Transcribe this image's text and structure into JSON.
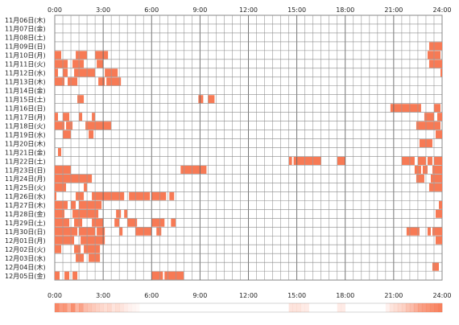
{
  "chart_data": {
    "type": "heatmap",
    "title": "",
    "xlabel": "",
    "ylabel": "",
    "x_ticks": [
      "0:00",
      "3:00",
      "6:00",
      "9:00",
      "12:00",
      "15:00",
      "18:00",
      "21:00",
      "24:00"
    ],
    "x_range_hours": [
      0,
      24
    ],
    "grid": true,
    "bar_color": "#f77a55",
    "rows": [
      {
        "label": "11月06日(木)",
        "segments": []
      },
      {
        "label": "11月07日(金)",
        "segments": []
      },
      {
        "label": "11月08日(土)",
        "segments": []
      },
      {
        "label": "11月09日(日)",
        "segments": [
          [
            23.2,
            24.0
          ]
        ]
      },
      {
        "label": "11月10日(月)",
        "segments": [
          [
            0.0,
            0.4
          ],
          [
            1.3,
            2.0
          ],
          [
            2.5,
            3.3
          ],
          [
            23.1,
            23.9
          ]
        ]
      },
      {
        "label": "11月11日(火)",
        "segments": [
          [
            0.0,
            0.8
          ],
          [
            1.1,
            1.8
          ],
          [
            2.6,
            3.0
          ],
          [
            23.2,
            24.0
          ]
        ]
      },
      {
        "label": "11月12日(水)",
        "segments": [
          [
            0.0,
            0.2
          ],
          [
            0.5,
            0.8
          ],
          [
            1.2,
            2.5
          ],
          [
            3.1,
            3.9
          ],
          [
            23.9,
            24.0
          ]
        ]
      },
      {
        "label": "11月13日(木)",
        "segments": [
          [
            0.0,
            0.6
          ],
          [
            0.8,
            1.4
          ],
          [
            2.7,
            3.1
          ],
          [
            3.2,
            4.1
          ]
        ]
      },
      {
        "label": "11月14日(金)",
        "segments": []
      },
      {
        "label": "11月15日(土)",
        "segments": [
          [
            1.4,
            1.8
          ],
          [
            8.9,
            9.2
          ],
          [
            9.5,
            9.9
          ]
        ]
      },
      {
        "label": "11月16日(日)",
        "segments": [
          [
            20.8,
            22.7
          ],
          [
            23.5,
            23.9
          ]
        ]
      },
      {
        "label": "11月17日(月)",
        "segments": [
          [
            0.0,
            0.2
          ],
          [
            0.5,
            0.9
          ],
          [
            1.5,
            1.7
          ],
          [
            2.3,
            2.5
          ],
          [
            22.9,
            23.5
          ],
          [
            23.7,
            24.0
          ]
        ]
      },
      {
        "label": "11月18日(火)",
        "segments": [
          [
            0.0,
            0.6
          ],
          [
            0.7,
            1.1
          ],
          [
            1.9,
            3.5
          ],
          [
            22.4,
            23.9
          ]
        ]
      },
      {
        "label": "11月19日(水)",
        "segments": [
          [
            0.5,
            1.0
          ],
          [
            2.1,
            2.4
          ],
          [
            23.6,
            24.0
          ]
        ]
      },
      {
        "label": "11月20日(木)",
        "segments": [
          [
            22.6,
            23.4
          ]
        ]
      },
      {
        "label": "11月21日(金)",
        "segments": [
          [
            0.2,
            0.4
          ]
        ]
      },
      {
        "label": "11月22日(土)",
        "segments": [
          [
            14.5,
            14.7
          ],
          [
            14.8,
            16.5
          ],
          [
            17.5,
            18.0
          ],
          [
            21.5,
            22.3
          ],
          [
            22.5,
            23.0
          ],
          [
            23.1,
            23.4
          ],
          [
            23.5,
            24.0
          ]
        ]
      },
      {
        "label": "11月23日(日)",
        "segments": [
          [
            0.0,
            1.0
          ],
          [
            7.8,
            9.4
          ],
          [
            22.3,
            22.7
          ],
          [
            22.8,
            23.1
          ],
          [
            23.4,
            24.0
          ]
        ]
      },
      {
        "label": "11月24日(月)",
        "segments": [
          [
            0.0,
            2.3
          ],
          [
            22.4,
            22.9
          ],
          [
            23.3,
            24.0
          ]
        ]
      },
      {
        "label": "11月25日(火)",
        "segments": [
          [
            0.0,
            0.7
          ],
          [
            1.8,
            2.0
          ],
          [
            23.2,
            24.0
          ]
        ]
      },
      {
        "label": "11月26日(水)",
        "segments": [
          [
            0.0,
            0.1
          ],
          [
            1.3,
            1.8
          ],
          [
            2.3,
            4.3
          ],
          [
            4.6,
            5.9
          ],
          [
            6.0,
            6.9
          ],
          [
            7.1,
            7.4
          ]
        ]
      },
      {
        "label": "11月27日(木)",
        "segments": [
          [
            0.0,
            0.8
          ],
          [
            1.0,
            1.3
          ],
          [
            1.5,
            2.9
          ],
          [
            23.8,
            24.0
          ]
        ]
      },
      {
        "label": "11月28日(金)",
        "segments": [
          [
            0.0,
            0.6
          ],
          [
            1.1,
            2.7
          ],
          [
            3.8,
            4.1
          ],
          [
            4.3,
            4.5
          ],
          [
            23.6,
            24.0
          ]
        ]
      },
      {
        "label": "11月29日(土)",
        "segments": [
          [
            0.0,
            0.9
          ],
          [
            1.2,
            1.7
          ],
          [
            2.3,
            3.0
          ],
          [
            3.7,
            4.0
          ],
          [
            4.5,
            5.1
          ],
          [
            6.0,
            6.8
          ],
          [
            7.2,
            7.5
          ]
        ]
      },
      {
        "label": "11月30日(日)",
        "segments": [
          [
            0.0,
            1.4
          ],
          [
            1.5,
            2.5
          ],
          [
            2.6,
            3.1
          ],
          [
            4.0,
            4.2
          ],
          [
            5.0,
            6.0
          ],
          [
            6.3,
            6.6
          ],
          [
            21.8,
            22.6
          ],
          [
            23.1,
            23.3
          ],
          [
            23.4,
            24.0
          ]
        ]
      },
      {
        "label": "12月01日(月)",
        "segments": [
          [
            0.0,
            1.2
          ],
          [
            1.6,
            3.1
          ],
          [
            23.6,
            24.0
          ]
        ]
      },
      {
        "label": "12月02日(火)",
        "segments": [
          [
            0.0,
            0.4
          ],
          [
            1.2,
            1.6
          ],
          [
            1.8,
            2.8
          ]
        ]
      },
      {
        "label": "12月03日(水)",
        "segments": [
          [
            1.3,
            1.8
          ],
          [
            2.1,
            2.8
          ]
        ]
      },
      {
        "label": "12月04日(木)",
        "segments": [
          [
            23.4,
            23.8
          ]
        ]
      },
      {
        "label": "12月05日(金)",
        "segments": [
          [
            0.0,
            0.3
          ],
          [
            0.6,
            0.9
          ],
          [
            1.1,
            1.4
          ],
          [
            6.0,
            6.7
          ],
          [
            6.8,
            8.0
          ]
        ]
      }
    ],
    "summary_strip": {
      "label_left": "0:00",
      "ticks": [
        "0:00",
        "3:00",
        "6:00",
        "9:00",
        "12:00",
        "15:00",
        "18:00",
        "21:00",
        "24:00"
      ],
      "color": "#f77a55",
      "intensity": [
        0.9,
        0.75,
        0.8,
        0.6,
        0.85,
        0.55,
        0.7,
        0.5,
        0.45,
        0.4,
        0.35,
        0.3,
        0.25,
        0.3,
        0.2,
        0.25,
        0.2,
        0.15,
        0.1,
        0.08,
        0.05,
        0.0,
        0.0,
        0.0,
        0.0,
        0.0,
        0.0,
        0.0,
        0.0,
        0.0,
        0.0,
        0.0,
        0.0,
        0.0,
        0.0,
        0.0,
        0.0,
        0.0,
        0.0,
        0.0,
        0.0,
        0.0,
        0.0,
        0.0,
        0.0,
        0.0,
        0.0,
        0.0,
        0.0,
        0.0,
        0.0,
        0.0,
        0.0,
        0.0,
        0.0,
        0.0,
        0.0,
        0.0,
        0.2,
        0.2,
        0.2,
        0.15,
        0.15,
        0.0,
        0.0,
        0.0,
        0.0,
        0.0,
        0.0,
        0.0,
        0.15,
        0.15,
        0.0,
        0.0,
        0.0,
        0.0,
        0.0,
        0.0,
        0.0,
        0.0,
        0.0,
        0.0,
        0.1,
        0.2,
        0.25,
        0.3,
        0.35,
        0.45,
        0.5,
        0.6,
        0.7,
        0.75,
        0.8,
        0.85,
        0.9,
        0.95
      ]
    }
  }
}
